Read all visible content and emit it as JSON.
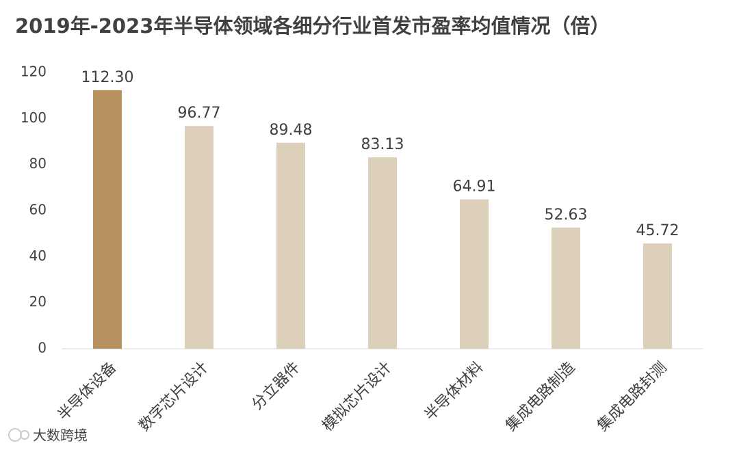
{
  "chart_data": {
    "type": "bar",
    "title": "2019年-2023年半导体领域各细分行业首发市盈率均值情况（倍）",
    "categories": [
      "半导体设备",
      "数字芯片设计",
      "分立器件",
      "模拟芯片设计",
      "半导体材料",
      "集成电路制造",
      "集成电路封测"
    ],
    "values": [
      112.3,
      96.77,
      89.48,
      83.13,
      64.91,
      52.63,
      45.72
    ],
    "value_labels": [
      "112.30",
      "96.77",
      "89.48",
      "83.13",
      "64.91",
      "52.63",
      "45.72"
    ],
    "colors": [
      "#b8925f",
      "#ddd0bb",
      "#ddd0bb",
      "#ddd0bb",
      "#ddd0bb",
      "#ddd0bb",
      "#ddd0bb"
    ],
    "ylim": [
      0,
      120
    ],
    "yticks": [
      0,
      20,
      40,
      60,
      80,
      100,
      120
    ],
    "grid": false
  },
  "watermark": "大数跨境"
}
